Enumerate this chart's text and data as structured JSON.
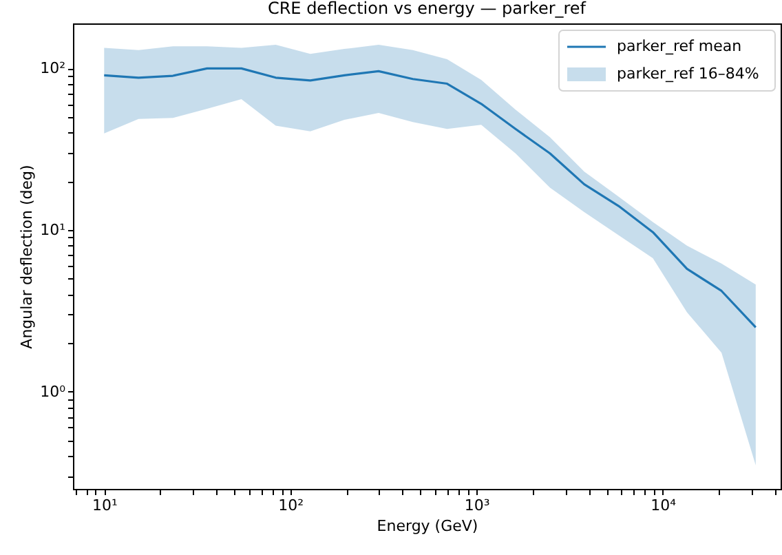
{
  "chart_data": {
    "type": "line",
    "title": "CRE deflection vs energy — parker_ref",
    "xlabel": "Energy (GeV)",
    "ylabel": "Angular deflection (deg)",
    "x": [
      10,
      15.3,
      23.4,
      35.7,
      54.6,
      83.5,
      128,
      195,
      298,
      455,
      695,
      1060,
      1620,
      2480,
      3790,
      5790,
      8860,
      13500,
      20700,
      31600
    ],
    "series": [
      {
        "name": "parker_ref mean",
        "line_style": "solid",
        "color": "#1f77b4",
        "values": [
          90.7,
          87.7,
          90.1,
          100,
          100,
          87.7,
          84.3,
          90.7,
          96.2,
          86,
          80.5,
          60.4,
          42.2,
          29.8,
          19.2,
          14.1,
          9.7,
          5.75,
          4.2,
          2.5
        ],
        "lower": [
          39.6,
          48.7,
          49.4,
          56.3,
          64.6,
          44.2,
          40.8,
          48.1,
          53.1,
          46.6,
          42.2,
          44.8,
          29.8,
          18.3,
          12.9,
          9.3,
          6.7,
          3.1,
          1.74,
          0.35
        ],
        "upper": [
          134,
          130,
          137,
          137,
          134,
          140,
          123,
          132,
          140,
          130,
          114,
          85,
          55.6,
          37.5,
          23,
          16.1,
          11.2,
          8,
          6.2,
          4.6
        ]
      }
    ],
    "log": "xy",
    "xlim": [
      6.8,
      43000
    ],
    "ylim": [
      0.25,
      190
    ],
    "xticks": [
      {
        "value": 7,
        "label": null
      },
      {
        "value": 8,
        "label": null
      },
      {
        "value": 9,
        "label": null
      },
      {
        "value": 10,
        "label": "10¹"
      },
      {
        "value": 20,
        "label": null
      },
      {
        "value": 30,
        "label": null
      },
      {
        "value": 40,
        "label": null
      },
      {
        "value": 50,
        "label": null
      },
      {
        "value": 60,
        "label": null
      },
      {
        "value": 70,
        "label": null
      },
      {
        "value": 80,
        "label": null
      },
      {
        "value": 90,
        "label": null
      },
      {
        "value": 100,
        "label": "10²"
      },
      {
        "value": 200,
        "label": null
      },
      {
        "value": 300,
        "label": null
      },
      {
        "value": 400,
        "label": null
      },
      {
        "value": 500,
        "label": null
      },
      {
        "value": 600,
        "label": null
      },
      {
        "value": 700,
        "label": null
      },
      {
        "value": 800,
        "label": null
      },
      {
        "value": 900,
        "label": null
      },
      {
        "value": 1000,
        "label": "10³"
      },
      {
        "value": 2000,
        "label": null
      },
      {
        "value": 3000,
        "label": null
      },
      {
        "value": 4000,
        "label": null
      },
      {
        "value": 5000,
        "label": null
      },
      {
        "value": 6000,
        "label": null
      },
      {
        "value": 7000,
        "label": null
      },
      {
        "value": 8000,
        "label": null
      },
      {
        "value": 9000,
        "label": null
      },
      {
        "value": 10000,
        "label": "10⁴"
      },
      {
        "value": 20000,
        "label": null
      },
      {
        "value": 30000,
        "label": null
      },
      {
        "value": 40000,
        "label": null
      }
    ],
    "yticks": [
      {
        "value": 0.3,
        "label": null
      },
      {
        "value": 0.4,
        "label": null
      },
      {
        "value": 0.5,
        "label": null
      },
      {
        "value": 0.6,
        "label": null
      },
      {
        "value": 0.7,
        "label": null
      },
      {
        "value": 0.8,
        "label": null
      },
      {
        "value": 0.9,
        "label": null
      },
      {
        "value": 1,
        "label": "10⁰"
      },
      {
        "value": 2,
        "label": null
      },
      {
        "value": 3,
        "label": null
      },
      {
        "value": 4,
        "label": null
      },
      {
        "value": 5,
        "label": null
      },
      {
        "value": 6,
        "label": null
      },
      {
        "value": 7,
        "label": null
      },
      {
        "value": 8,
        "label": null
      },
      {
        "value": 9,
        "label": null
      },
      {
        "value": 10,
        "label": "10¹"
      },
      {
        "value": 20,
        "label": null
      },
      {
        "value": 30,
        "label": null
      },
      {
        "value": 40,
        "label": null
      },
      {
        "value": 50,
        "label": null
      },
      {
        "value": 60,
        "label": null
      },
      {
        "value": 70,
        "label": null
      },
      {
        "value": 80,
        "label": null
      },
      {
        "value": 90,
        "label": null
      },
      {
        "value": 100,
        "label": "10²"
      }
    ],
    "annotations": [
      "parker_ref 16–84%"
    ],
    "grid": false,
    "legend": "top right"
  }
}
